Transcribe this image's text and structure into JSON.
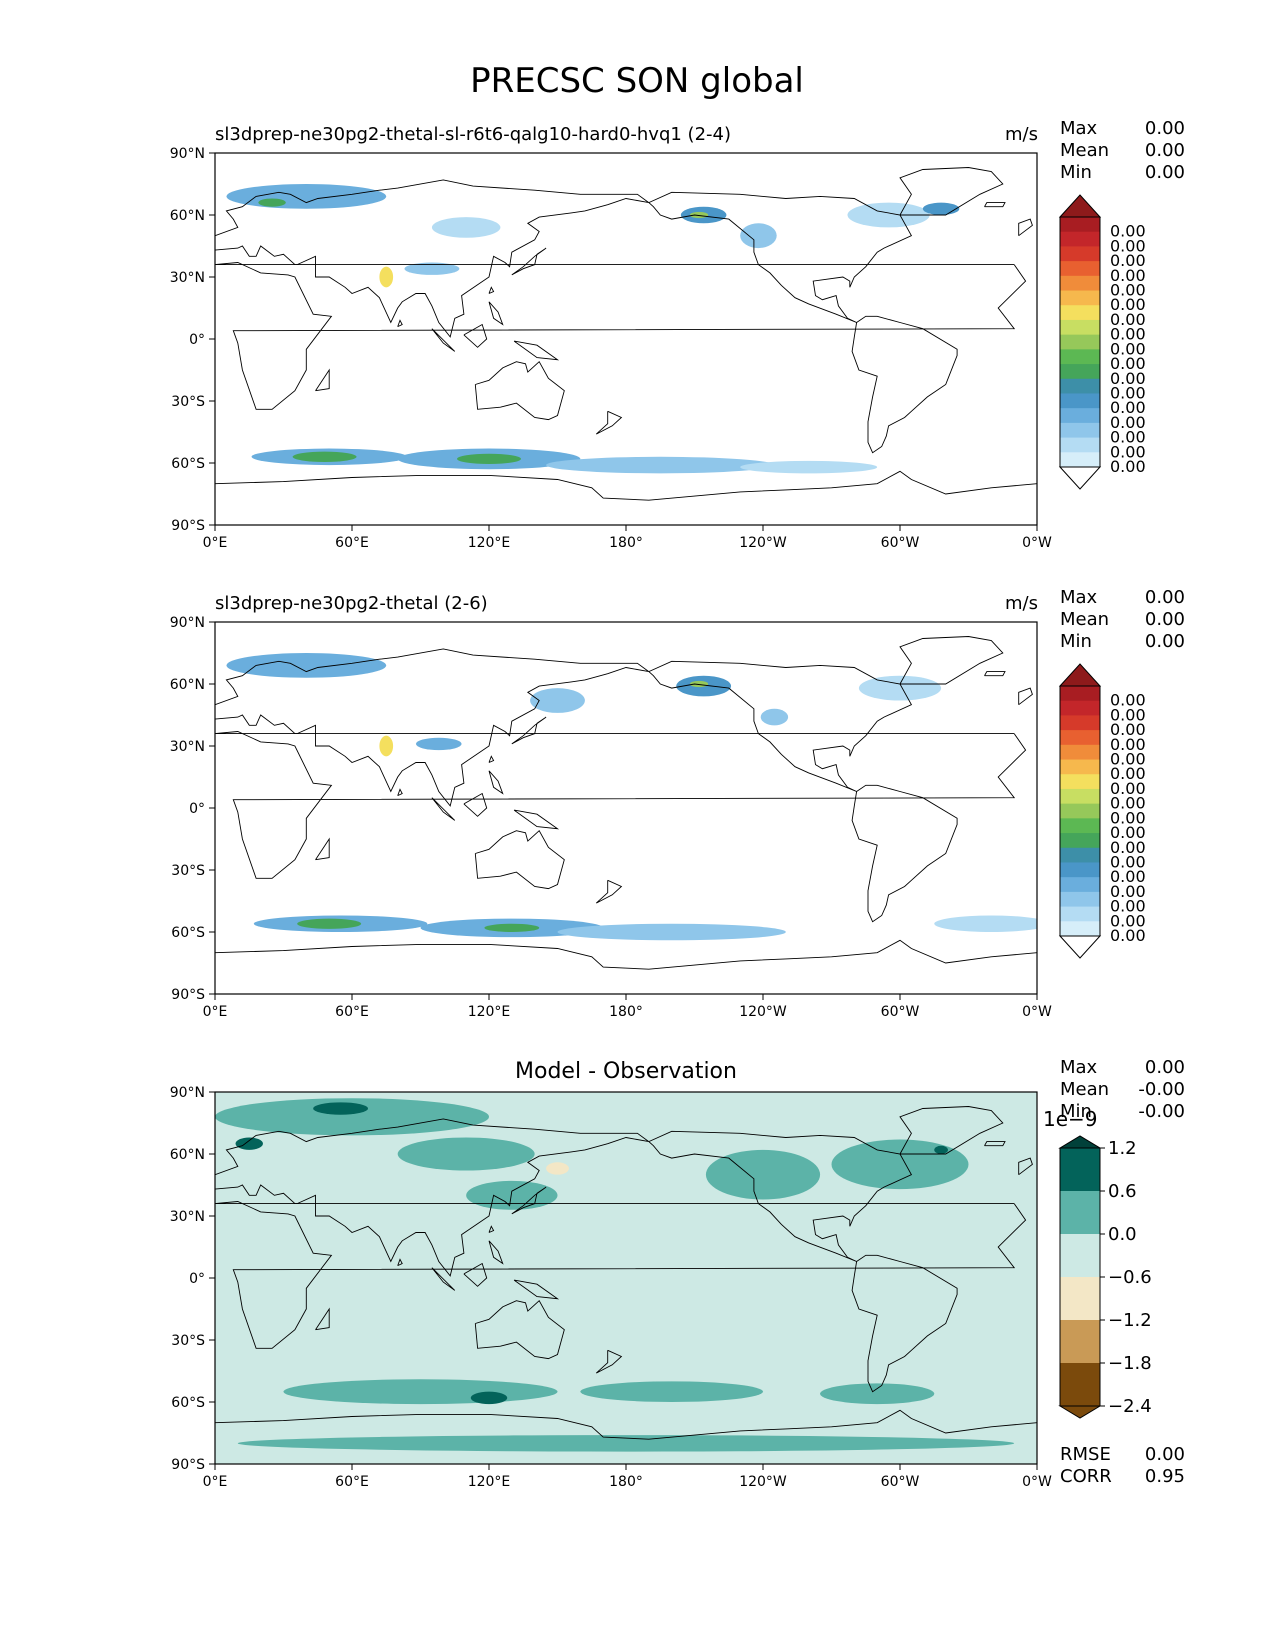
{
  "figure": {
    "title": "PRECSC SON global"
  },
  "colors": {
    "precip_levels": [
      "#ffffff",
      "#d6eef9",
      "#b4dcf3",
      "#8fc6ea",
      "#6aaedd",
      "#4a96c8",
      "#3d8fa8",
      "#45a55a",
      "#5cb853",
      "#96c85a",
      "#c8de62",
      "#f4df5e",
      "#f6b84d",
      "#f08c3a",
      "#e86030",
      "#d63a2a",
      "#c3262a",
      "#a81d22",
      "#8e1a1b"
    ],
    "diff_levels": [
      "#7b4a0c",
      "#c99a56",
      "#f3e7c6",
      "#cde9e4",
      "#5cb3a8",
      "#03635a",
      "#01413a"
    ],
    "land_line": "#000000"
  },
  "panels": [
    {
      "id": "test",
      "left_title": "sl3dprep-ne30pg2-thetal-sl-r6t6-qalg10-hard0-hvq1 (2-4)",
      "center_title": "",
      "units": "m/s",
      "stats": [
        {
          "label": "Max",
          "value": "0.00"
        },
        {
          "label": "Mean",
          "value": "0.00"
        },
        {
          "label": "Min",
          "value": "0.00"
        }
      ],
      "colorbar_ticks": [
        "0.00",
        "0.00",
        "0.00",
        "0.00",
        "0.00",
        "0.00",
        "0.00",
        "0.00",
        "0.00",
        "0.00",
        "0.00",
        "0.00",
        "0.00",
        "0.00",
        "0.00",
        "0.00",
        "0.00"
      ]
    },
    {
      "id": "ref",
      "left_title": "sl3dprep-ne30pg2-thetal (2-6)",
      "center_title": "",
      "units": "m/s",
      "stats": [
        {
          "label": "Max",
          "value": "0.00"
        },
        {
          "label": "Mean",
          "value": "0.00"
        },
        {
          "label": "Min",
          "value": "0.00"
        }
      ],
      "colorbar_ticks": [
        "0.00",
        "0.00",
        "0.00",
        "0.00",
        "0.00",
        "0.00",
        "0.00",
        "0.00",
        "0.00",
        "0.00",
        "0.00",
        "0.00",
        "0.00",
        "0.00",
        "0.00",
        "0.00",
        "0.00"
      ]
    },
    {
      "id": "diff",
      "left_title": "",
      "center_title": "Model - Observation",
      "units": "",
      "stats": [
        {
          "label": "Max",
          "value": "0.00"
        },
        {
          "label": "Mean",
          "value": "-0.00"
        },
        {
          "label": "Min",
          "value": "-0.00"
        }
      ],
      "colorbar_exponent": "1e−9",
      "colorbar_ticks": [
        "1.2",
        "0.6",
        "0.0",
        "−0.6",
        "−1.2",
        "−1.8",
        "−2.4"
      ],
      "metrics": [
        {
          "label": "RMSE",
          "value": "0.00"
        },
        {
          "label": "CORR",
          "value": "0.95"
        }
      ]
    }
  ],
  "axes": {
    "lat_ticks": [
      "90°N",
      "60°N",
      "30°N",
      "0°",
      "30°S",
      "60°S",
      "90°S"
    ],
    "lon_ticks": [
      "0°E",
      "60°E",
      "120°E",
      "180°",
      "120°W",
      "60°W",
      "0°W"
    ]
  },
  "chart_data": [
    {
      "type": "heatmap",
      "title": "sl3dprep-ne30pg2-thetal-sl-r6t6-qalg10-hard0-hvq1 (2-4)",
      "xlabel": "",
      "ylabel": "",
      "xlim": [
        0,
        360
      ],
      "ylim": [
        -90,
        90
      ],
      "colorbar_unit": "m/s",
      "regions": [
        {
          "lon": 50,
          "lat": -57,
          "rx": 34,
          "ry": 4,
          "level": 4
        },
        {
          "lon": 48,
          "lat": -57,
          "rx": 14,
          "ry": 2.5,
          "level": 7
        },
        {
          "lon": 120,
          "lat": -58,
          "rx": 40,
          "ry": 5,
          "level": 4
        },
        {
          "lon": 120,
          "lat": -58,
          "rx": 14,
          "ry": 2.5,
          "level": 7
        },
        {
          "lon": 195,
          "lat": -61,
          "rx": 50,
          "ry": 4,
          "level": 3
        },
        {
          "lon": 260,
          "lat": -62,
          "rx": 30,
          "ry": 3,
          "level": 2
        },
        {
          "lon": 40,
          "lat": 69,
          "rx": 35,
          "ry": 6,
          "level": 4
        },
        {
          "lon": 25,
          "lat": 66,
          "rx": 6,
          "ry": 2,
          "level": 7
        },
        {
          "lon": 75,
          "lat": 30,
          "rx": 3,
          "ry": 5,
          "level": 11
        },
        {
          "lon": 95,
          "lat": 34,
          "rx": 12,
          "ry": 3,
          "level": 3
        },
        {
          "lon": 110,
          "lat": 54,
          "rx": 15,
          "ry": 5,
          "level": 2
        },
        {
          "lon": 214,
          "lat": 60,
          "rx": 10,
          "ry": 4,
          "level": 5
        },
        {
          "lon": 212,
          "lat": 60,
          "rx": 4,
          "ry": 1.5,
          "level": 9
        },
        {
          "lon": 238,
          "lat": 50,
          "rx": 8,
          "ry": 6,
          "level": 3
        },
        {
          "lon": 295,
          "lat": 60,
          "rx": 18,
          "ry": 6,
          "level": 2
        },
        {
          "lon": 318,
          "lat": 63,
          "rx": 8,
          "ry": 3,
          "level": 5
        }
      ]
    },
    {
      "type": "heatmap",
      "title": "sl3dprep-ne30pg2-thetal (2-6)",
      "xlabel": "",
      "ylabel": "",
      "xlim": [
        0,
        360
      ],
      "ylim": [
        -90,
        90
      ],
      "colorbar_unit": "m/s",
      "regions": [
        {
          "lon": 55,
          "lat": -56,
          "rx": 38,
          "ry": 4,
          "level": 4
        },
        {
          "lon": 50,
          "lat": -56,
          "rx": 14,
          "ry": 2.5,
          "level": 7
        },
        {
          "lon": 130,
          "lat": -58,
          "rx": 40,
          "ry": 4.5,
          "level": 4
        },
        {
          "lon": 130,
          "lat": -58,
          "rx": 12,
          "ry": 2,
          "level": 7
        },
        {
          "lon": 200,
          "lat": -60,
          "rx": 50,
          "ry": 4,
          "level": 3
        },
        {
          "lon": 340,
          "lat": -56,
          "rx": 25,
          "ry": 4,
          "level": 2
        },
        {
          "lon": 40,
          "lat": 69,
          "rx": 35,
          "ry": 6,
          "level": 4
        },
        {
          "lon": 75,
          "lat": 30,
          "rx": 3,
          "ry": 5,
          "level": 11
        },
        {
          "lon": 98,
          "lat": 31,
          "rx": 10,
          "ry": 3,
          "level": 4
        },
        {
          "lon": 150,
          "lat": 52,
          "rx": 12,
          "ry": 6,
          "level": 3
        },
        {
          "lon": 214,
          "lat": 59,
          "rx": 12,
          "ry": 5,
          "level": 5
        },
        {
          "lon": 212,
          "lat": 60,
          "rx": 4,
          "ry": 1.5,
          "level": 9
        },
        {
          "lon": 245,
          "lat": 44,
          "rx": 6,
          "ry": 4,
          "level": 3
        },
        {
          "lon": 300,
          "lat": 58,
          "rx": 18,
          "ry": 6,
          "level": 2
        }
      ]
    },
    {
      "type": "heatmap",
      "title": "Model - Observation",
      "xlabel": "",
      "ylabel": "",
      "xlim": [
        0,
        360
      ],
      "ylim": [
        -90,
        90
      ],
      "colorbar_unit": "1e-9",
      "regions": [
        {
          "lon": 60,
          "lat": 78,
          "rx": 60,
          "ry": 9,
          "level": 4
        },
        {
          "lon": 55,
          "lat": 82,
          "rx": 12,
          "ry": 3,
          "level": 5
        },
        {
          "lon": 15,
          "lat": 65,
          "rx": 6,
          "ry": 3,
          "level": 5
        },
        {
          "lon": 110,
          "lat": 60,
          "rx": 30,
          "ry": 8,
          "level": 4
        },
        {
          "lon": 130,
          "lat": 40,
          "rx": 20,
          "ry": 7,
          "level": 4
        },
        {
          "lon": 150,
          "lat": 53,
          "rx": 5,
          "ry": 3,
          "level": 2
        },
        {
          "lon": 240,
          "lat": 50,
          "rx": 25,
          "ry": 12,
          "level": 4
        },
        {
          "lon": 300,
          "lat": 55,
          "rx": 30,
          "ry": 12,
          "level": 4
        },
        {
          "lon": 318,
          "lat": 62,
          "rx": 3,
          "ry": 2,
          "level": 5
        },
        {
          "lon": 90,
          "lat": -55,
          "rx": 60,
          "ry": 6,
          "level": 4
        },
        {
          "lon": 120,
          "lat": -58,
          "rx": 8,
          "ry": 3,
          "level": 5
        },
        {
          "lon": 200,
          "lat": -55,
          "rx": 40,
          "ry": 5,
          "level": 4
        },
        {
          "lon": 290,
          "lat": -56,
          "rx": 25,
          "ry": 5,
          "level": 4
        },
        {
          "lon": 180,
          "lat": -80,
          "rx": 170,
          "ry": 4,
          "level": 4
        }
      ]
    }
  ]
}
